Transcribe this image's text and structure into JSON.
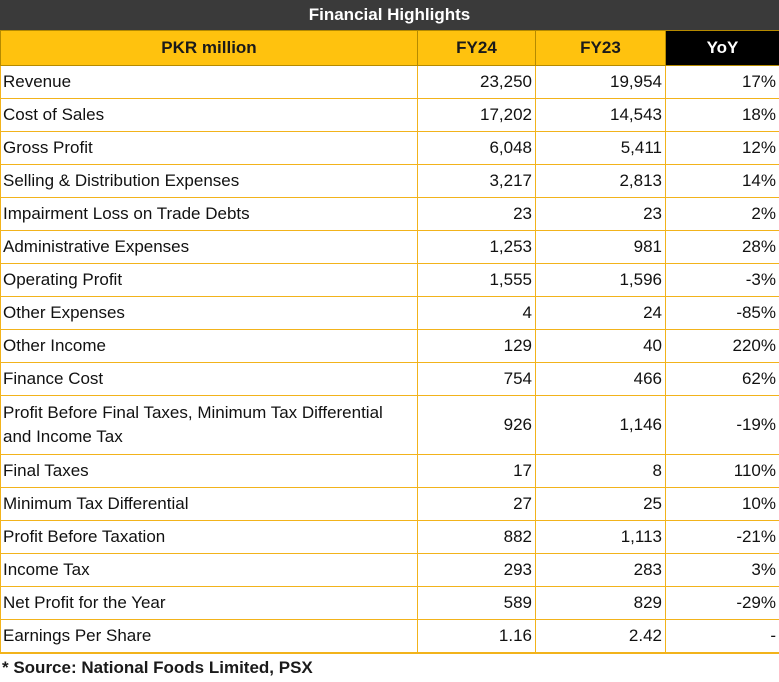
{
  "title": "Financial Highlights",
  "headers": {
    "label": "PKR million",
    "fy24": "FY24",
    "fy23": "FY23",
    "yoy": "YoY"
  },
  "rows": [
    {
      "label": "Revenue",
      "fy24": "23,250",
      "fy23": "19,954",
      "yoy": "17%"
    },
    {
      "label": "Cost of Sales",
      "fy24": "17,202",
      "fy23": "14,543",
      "yoy": "18%"
    },
    {
      "label": "Gross Profit",
      "fy24": "6,048",
      "fy23": "5,411",
      "yoy": "12%"
    },
    {
      "label": "Selling & Distribution Expenses",
      "fy24": "3,217",
      "fy23": "2,813",
      "yoy": "14%"
    },
    {
      "label": "Impairment Loss on Trade Debts",
      "fy24": "23",
      "fy23": "23",
      "yoy": "2%"
    },
    {
      "label": "Administrative Expenses",
      "fy24": "1,253",
      "fy23": "981",
      "yoy": "28%"
    },
    {
      "label": "Operating Profit",
      "fy24": "1,555",
      "fy23": "1,596",
      "yoy": "-3%"
    },
    {
      "label": "Other Expenses",
      "fy24": "4",
      "fy23": "24",
      "yoy": "-85%"
    },
    {
      "label": "Other Income",
      "fy24": "129",
      "fy23": "40",
      "yoy": "220%"
    },
    {
      "label": "Finance Cost",
      "fy24": "754",
      "fy23": "466",
      "yoy": "62%"
    },
    {
      "label": "Profit Before Final Taxes, Minimum Tax Differential and Income Tax",
      "fy24": "926",
      "fy23": "1,146",
      "yoy": "-19%"
    },
    {
      "label": "Final Taxes",
      "fy24": "17",
      "fy23": "8",
      "yoy": "110%"
    },
    {
      "label": "Minimum Tax Differential",
      "fy24": "27",
      "fy23": "25",
      "yoy": "10%"
    },
    {
      "label": "Profit Before Taxation",
      "fy24": "882",
      "fy23": "1,113",
      "yoy": "-21%"
    },
    {
      "label": "Income Tax",
      "fy24": "293",
      "fy23": "283",
      "yoy": "3%"
    },
    {
      "label": "Net Profit for the Year",
      "fy24": "589",
      "fy23": "829",
      "yoy": "-29%"
    },
    {
      "label": "Earnings Per Share",
      "fy24": "1.16",
      "fy23": "2.42",
      "yoy": "-"
    }
  ],
  "footnote": "* Source: National Foods Limited, PSX",
  "colors": {
    "header_bg": "#ffc20e",
    "title_bg": "#3a3a3a",
    "yoy_header_bg": "#000000",
    "border": "#f2b31b"
  }
}
